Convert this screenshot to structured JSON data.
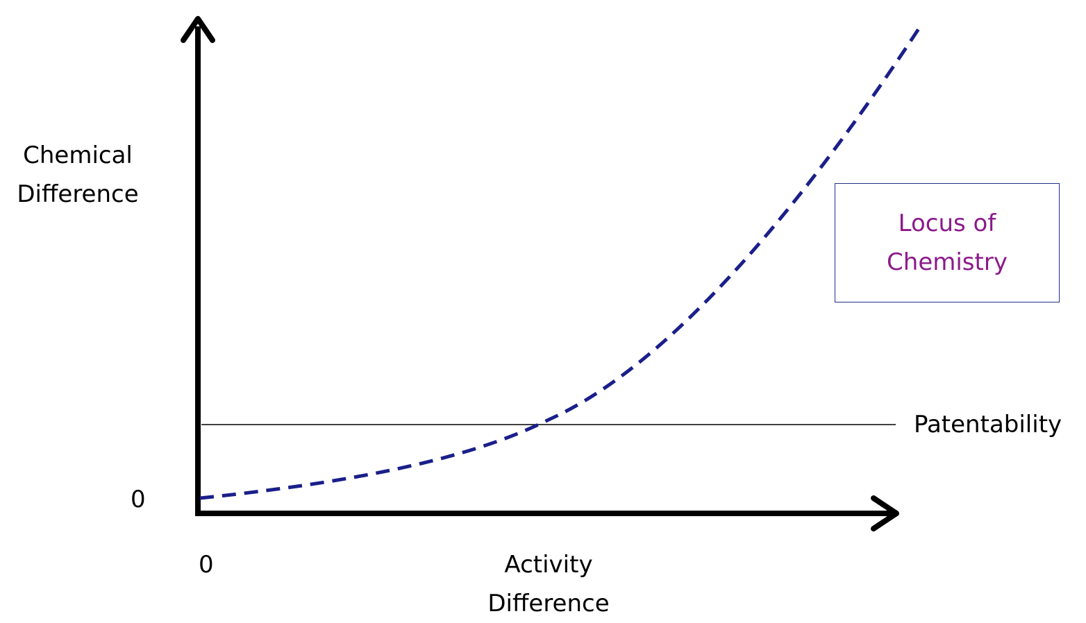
{
  "axes": {
    "y_label_line1": "Chemical",
    "y_label_line2": "Difference",
    "x_label_line1": "Activity",
    "x_label_line2": "Difference",
    "y_origin": "0",
    "x_origin": "0"
  },
  "threshold": {
    "label": "Patentability"
  },
  "callout": {
    "line1": "Locus of",
    "line2": "Chemistry",
    "text_color": "#8b1a8b",
    "border_color": "#1f2f86"
  },
  "curve": {
    "color": "#1a1f8a",
    "style": "dashed"
  },
  "colors": {
    "axis": "#000000"
  }
}
